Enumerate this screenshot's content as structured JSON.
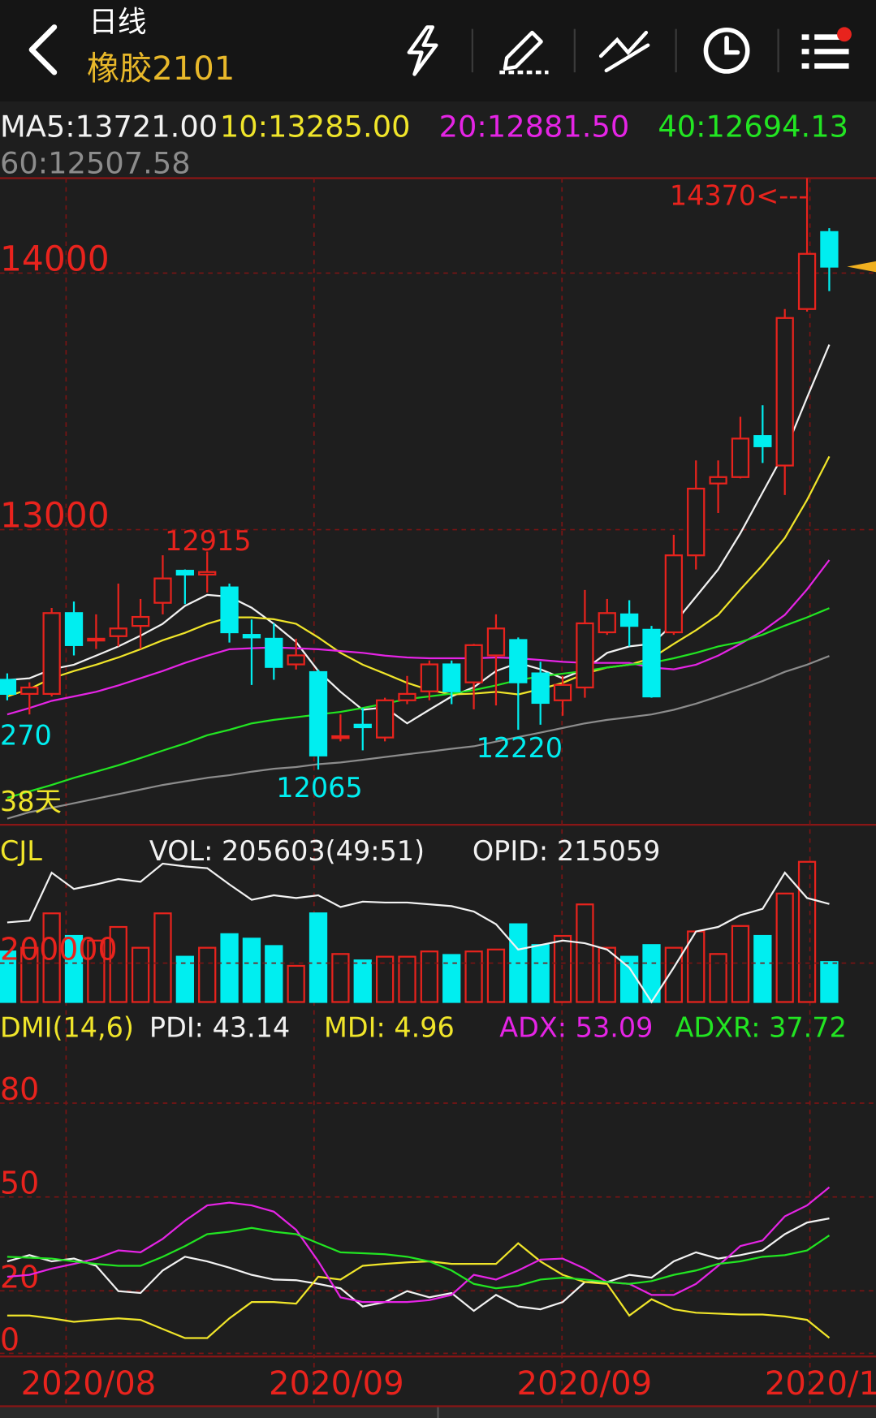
{
  "header": {
    "title": "日线",
    "symbol": "橡胶2101"
  },
  "chart_data": [
    {
      "type": "candlestick",
      "up_color": "#e8231d",
      "down_color": "#00eef0",
      "open": [
        12415,
        12360,
        12360,
        12675,
        12570,
        12585,
        12625,
        12715,
        12840,
        12825,
        12775,
        12590,
        12575,
        12475,
        12445,
        12190,
        12240,
        12190,
        12335,
        12370,
        12475,
        12405,
        12510,
        12570,
        12440,
        12335,
        12385,
        12600,
        12670,
        12610,
        12600,
        12900,
        13180,
        13205,
        13365,
        13250,
        13860,
        14160
      ],
      "high": [
        12440,
        12405,
        12695,
        12720,
        12670,
        12790,
        12730,
        12900,
        12845,
        12915,
        12790,
        12650,
        12635,
        12575,
        12455,
        12280,
        12305,
        12345,
        12430,
        12490,
        12490,
        12555,
        12670,
        12580,
        12485,
        12430,
        12765,
        12730,
        12725,
        12625,
        12980,
        13270,
        13270,
        13440,
        13485,
        13860,
        14370,
        14175
      ],
      "low": [
        12335,
        12280,
        12350,
        12510,
        12535,
        12545,
        12535,
        12670,
        12710,
        12755,
        12560,
        12395,
        12415,
        12455,
        12065,
        12175,
        12140,
        12175,
        12320,
        12335,
        12320,
        12300,
        12315,
        12220,
        12240,
        12275,
        12345,
        12590,
        12545,
        12345,
        12590,
        12845,
        13065,
        13200,
        13260,
        13135,
        13850,
        13930
      ],
      "close": [
        12360,
        12385,
        12675,
        12550,
        12575,
        12615,
        12660,
        12810,
        12825,
        12835,
        12600,
        12580,
        12465,
        12510,
        12120,
        12195,
        12230,
        12335,
        12360,
        12475,
        12370,
        12550,
        12615,
        12405,
        12325,
        12395,
        12635,
        12675,
        12625,
        12350,
        12900,
        13160,
        13205,
        13355,
        13325,
        13825,
        14075,
        14025
      ],
      "series": [
        {
          "name": "MA5:13721.00",
          "color": "#f2f2f2",
          "values": [
            12414,
            12421,
            12456,
            12474,
            12509,
            12545,
            12587,
            12633,
            12703,
            12746,
            12739,
            12696,
            12633,
            12562,
            12449,
            12368,
            12298,
            12308,
            12245,
            12298,
            12350,
            12386,
            12449,
            12481,
            12456,
            12421,
            12456,
            12520,
            12545,
            12555,
            12633,
            12739,
            12845,
            12986,
            13145,
            13304,
            13515,
            13721
          ]
        },
        {
          "name": "10:13285.00",
          "color": "#f0e52a",
          "values": [
            12350,
            12379,
            12421,
            12449,
            12474,
            12502,
            12534,
            12569,
            12598,
            12633,
            12658,
            12658,
            12651,
            12633,
            12580,
            12520,
            12474,
            12439,
            12403,
            12375,
            12358,
            12361,
            12368,
            12358,
            12379,
            12403,
            12439,
            12463,
            12474,
            12499,
            12555,
            12608,
            12668,
            12767,
            12862,
            12968,
            13116,
            13285
          ]
        },
        {
          "name": "20:12881.50",
          "color": "#e524e5",
          "values": [
            12280,
            12305,
            12333,
            12350,
            12368,
            12393,
            12421,
            12449,
            12481,
            12509,
            12534,
            12538,
            12541,
            12538,
            12534,
            12527,
            12520,
            12509,
            12502,
            12499,
            12499,
            12499,
            12502,
            12499,
            12492,
            12485,
            12481,
            12481,
            12481,
            12463,
            12456,
            12474,
            12509,
            12555,
            12605,
            12668,
            12767,
            12881.5
          ]
        },
        {
          "name": "40:12694.13",
          "color": "#22e522",
          "values": [
            11955,
            11980,
            12005,
            12033,
            12057,
            12082,
            12110,
            12139,
            12167,
            12199,
            12220,
            12245,
            12259,
            12269,
            12280,
            12290,
            12305,
            12322,
            12340,
            12350,
            12361,
            12375,
            12393,
            12414,
            12428,
            12439,
            12449,
            12463,
            12474,
            12481,
            12499,
            12520,
            12545,
            12562,
            12591,
            12626,
            12658,
            12694.13
          ]
        },
        {
          "name": "60:12507.58",
          "color": "#8c8c8c",
          "values": [
            11874,
            11899,
            11916,
            11934,
            11952,
            11969,
            11987,
            12005,
            12019,
            12033,
            12043,
            12057,
            12068,
            12075,
            12086,
            12093,
            12103,
            12114,
            12125,
            12135,
            12146,
            12156,
            12174,
            12192,
            12209,
            12227,
            12245,
            12259,
            12269,
            12280,
            12298,
            12322,
            12350,
            12379,
            12410,
            12446,
            12474,
            12507.58
          ]
        }
      ],
      "ylim": [
        11850,
        14370
      ],
      "yticks": [
        14000,
        13000
      ],
      "grid": true,
      "annotations": [
        "14370<---",
        "12915",
        "12065",
        "12220",
        "270",
        "38天"
      ],
      "date_labels": [
        "2020/08",
        "2020/09",
        "2020/09",
        "2020/1"
      ]
    },
    {
      "type": "bar",
      "title": "CJL",
      "series": [
        {
          "name": "VOL: 205603(49:51)",
          "color": "#f2f2f2",
          "values": [
            260000,
            279000,
            456000,
            340000,
            316000,
            386000,
            279000,
            456000,
            233000,
            279000,
            349000,
            326000,
            288000,
            186000,
            456000,
            247000,
            214000,
            233000,
            233000,
            260000,
            242000,
            260000,
            270000,
            400000,
            293000,
            340000,
            502000,
            279000,
            233000,
            293000,
            279000,
            363000,
            247000,
            391000,
            340000,
            558000,
            721000,
            205603
          ]
        },
        {
          "name": "OPID: 215059",
          "color": "#f2f2f2",
          "axis": "y2",
          "values": [
            212000,
            212300,
            220250,
            217550,
            218300,
            219200,
            218750,
            221750,
            221300,
            221000,
            218300,
            215750,
            216500,
            216050,
            216500,
            214550,
            215450,
            215300,
            215300,
            215000,
            214700,
            213800,
            211700,
            207500,
            208250,
            209000,
            208550,
            207500,
            204500,
            198800,
            204500,
            210500,
            211250,
            213200,
            214250,
            220250,
            216050,
            215059
          ]
        }
      ],
      "ylim": [
        0,
        883700
      ],
      "yticks": [
        200000
      ],
      "y2lim": [
        198800,
        227300
      ],
      "grid": true
    },
    {
      "type": "line",
      "title": "DMI(14,6)",
      "series": [
        {
          "name": "PDI: 43.14",
          "color": "#f2f2f2",
          "values": [
            29.4,
            31.4,
            29.4,
            30.3,
            28.0,
            19.9,
            19.3,
            26.5,
            30.9,
            29.4,
            27.4,
            25.1,
            23.6,
            23.4,
            22.2,
            20.8,
            15.0,
            16.4,
            19.9,
            17.9,
            19.3,
            13.6,
            18.7,
            15.0,
            14.1,
            16.4,
            22.8,
            22.8,
            25.1,
            24.2,
            29.4,
            32.3,
            30.3,
            31.4,
            32.9,
            38.1,
            41.8,
            43.14
          ]
        },
        {
          "name": "MDI: 4.96",
          "color": "#f0e52a",
          "values": [
            12.1,
            12.1,
            11.2,
            10.1,
            10.7,
            11.2,
            10.7,
            7.8,
            4.9,
            4.9,
            11.2,
            16.4,
            16.4,
            15.9,
            24.5,
            23.6,
            28.0,
            28.6,
            29.1,
            29.4,
            28.6,
            28.6,
            28.6,
            35.2,
            29.4,
            25.1,
            22.8,
            22.2,
            12.1,
            17.3,
            14.1,
            13.0,
            12.7,
            12.4,
            12.4,
            11.8,
            10.7,
            4.96
          ]
        },
        {
          "name": "ADX: 53.09",
          "color": "#e524e5",
          "values": [
            24.5,
            25.1,
            27.1,
            28.6,
            30.3,
            32.9,
            32.3,
            36.6,
            42.4,
            47.3,
            48.2,
            47.3,
            45.3,
            39.5,
            29.4,
            17.9,
            16.4,
            16.4,
            16.4,
            17.0,
            18.7,
            25.1,
            23.6,
            26.5,
            30.0,
            30.3,
            27.1,
            22.8,
            22.2,
            18.7,
            18.7,
            22.2,
            28.0,
            34.3,
            36.1,
            43.8,
            47.3,
            53.09
          ]
        },
        {
          "name": "ADXR: 37.72",
          "color": "#22e522",
          "values": [
            30.9,
            30.6,
            30.3,
            29.4,
            28.6,
            28.0,
            28.0,
            30.9,
            34.3,
            38.1,
            38.9,
            40.1,
            38.9,
            38.1,
            35.2,
            32.3,
            32.0,
            31.7,
            30.9,
            29.4,
            26.5,
            22.2,
            20.8,
            21.6,
            23.6,
            24.2,
            23.6,
            22.8,
            22.2,
            23.1,
            25.1,
            26.5,
            28.6,
            29.4,
            30.9,
            31.4,
            32.9,
            37.72
          ]
        }
      ],
      "ylim": [
        -1,
        97
      ],
      "yticks": [
        80,
        50,
        20,
        0
      ],
      "grid": true
    }
  ]
}
